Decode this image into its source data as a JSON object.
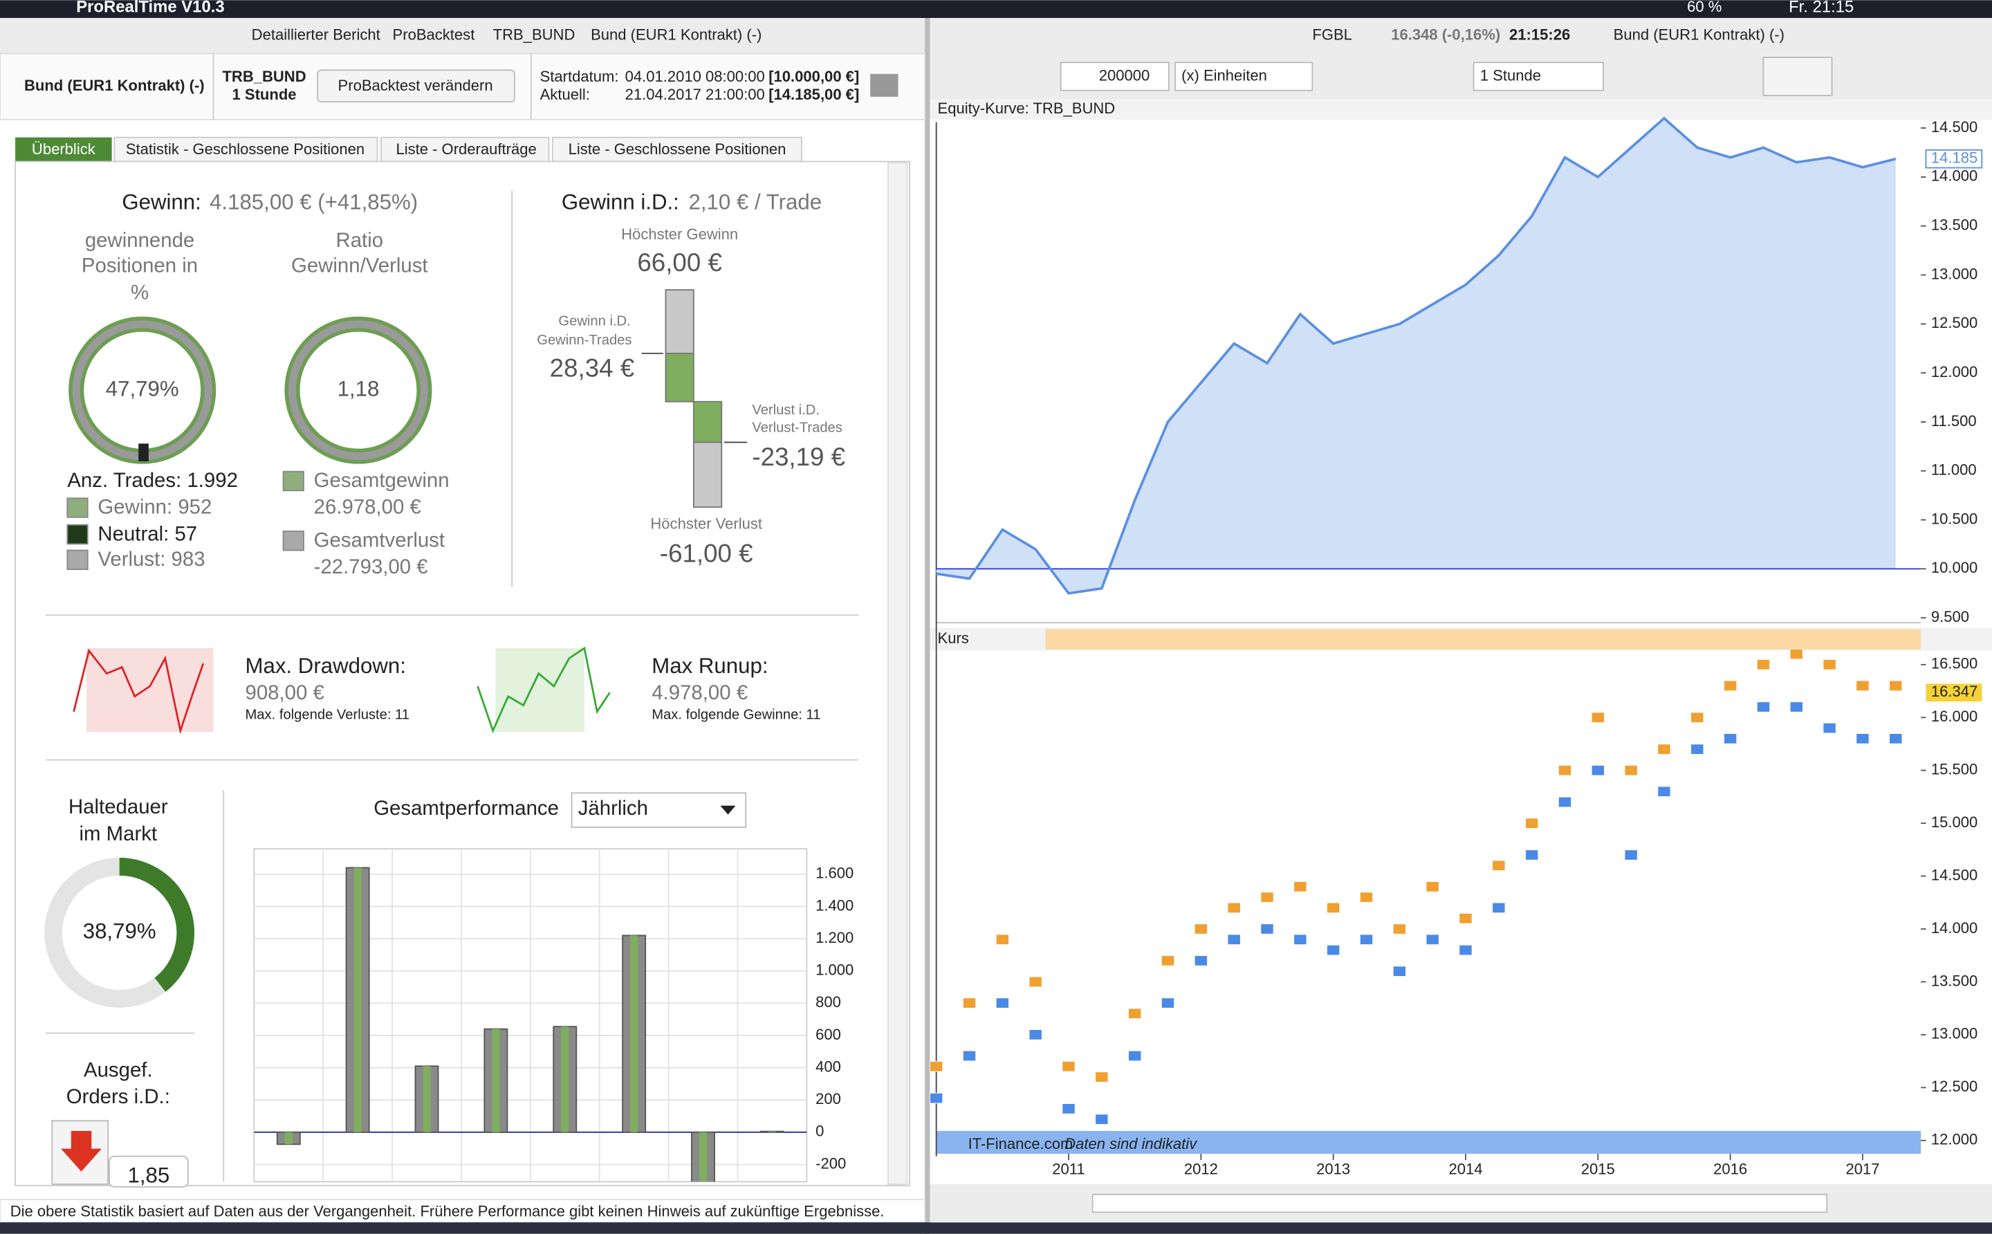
{
  "ui": {
    "menubar": {
      "app": "ProRealTime V10.3",
      "battery": "60 %",
      "clock": "Fr. 21:15"
    },
    "left_title": {
      "items": [
        "Detaillierter Bericht",
        "ProBacktest",
        "TRB_BUND",
        "Bund (EUR1 Kontrakt) (-)"
      ]
    },
    "header": {
      "instrument": "Bund (EUR1 Kontrakt) (-)",
      "system": "TRB_BUND",
      "interval": "1 Stunde",
      "button": "ProBacktest verändern",
      "start_label": "Startdatum:",
      "start": "04.01.2010 08:00:00",
      "start_capital": "[10.000,00 €]",
      "current_label": "Aktuell:",
      "current": "21.04.2017 21:00:00",
      "current_capital": "[14.185,00 €]"
    },
    "tabs": [
      "Überblick",
      "Statistik - Geschlossene Positionen",
      "Liste - Orderaufträge",
      "Liste - Geschlossene Positionen"
    ],
    "summary": {
      "gain_label": "Gewinn:",
      "gain": "4.185,00 € (+41,85%)",
      "win_title": [
        "gewinnende",
        "Positionen in",
        "%"
      ],
      "win_value": "47,79%",
      "ratio_title": [
        "Ratio",
        "Gewinn/Verlust"
      ],
      "ratio_value": "1,18",
      "trades": "Anz. Trades: 1.992",
      "wins": "Gewinn: 952",
      "neutral": "Neutral: 57",
      "losses": "Verlust: 983",
      "total_gain_label": "Gesamtgewinn",
      "total_gain": "26.978,00 €",
      "total_loss_label": "Gesamtverlust",
      "total_loss": "-22.793,00 €"
    },
    "avg": {
      "title": "Gewinn i.D.:",
      "value": "2,10 € / Trade",
      "best_label": "Höchster Gewinn",
      "best": "66,00 €",
      "avg_win_label": [
        "Gewinn i.D.",
        "Gewinn-Trades"
      ],
      "avg_win": "28,34 €",
      "avg_loss_label": [
        "Verlust i.D.",
        "Verlust-Trades"
      ],
      "avg_loss": "-23,19 €",
      "worst_label": "Höchster Verlust",
      "worst": "-61,00 €"
    },
    "drawdown": {
      "label": "Max. Drawdown:",
      "value": "908,00 €",
      "sub": "Max. folgende Verluste: 11"
    },
    "runup": {
      "label": "Max Runup:",
      "value": "4.978,00 €",
      "sub": "Max. folgende Gewinne: 11"
    },
    "hold": {
      "title": [
        "Haltedauer",
        "im Markt"
      ],
      "value": "38,79%"
    },
    "orders": {
      "title": [
        "Ausgef.",
        "Orders i.D.:"
      ],
      "value": "1,85"
    },
    "perf": {
      "label": "Gesamtperformance",
      "dropdown": "Jährlich"
    },
    "footer": "Die obere Statistik basiert auf Daten aus der Vergangenheit. Frühere Performance gibt keinen Hinweis auf zukünftige Ergebnisse.",
    "right": {
      "symbol": "FGBL",
      "quote": "16.348 (-0,16%)",
      "time": "21:15:26",
      "name": "Bund (EUR1 Kontrakt) (-)",
      "qty": "200000",
      "unit": "(x) Einheiten",
      "interval": "1 Stunde",
      "equity_title": "Equity-Kurve: TRB_BUND",
      "price_title": "Kurs",
      "source": "IT-Finance.com",
      "note": "Daten sind indikativ"
    }
  },
  "chart_data": [
    {
      "type": "bar",
      "categories": [
        null,
        null,
        null,
        null,
        null,
        null,
        null,
        null
      ],
      "values": [
        -75,
        1640,
        410,
        640,
        655,
        1220,
        -400,
        5
      ],
      "color": "#8a8a8a",
      "ylim": [
        -307,
        1757
      ],
      "yticks": [
        {
          "value": 1600,
          "label": "1.600"
        },
        {
          "value": 1400,
          "label": "1.400"
        },
        {
          "value": 1200,
          "label": "1.200"
        },
        {
          "value": 1000,
          "label": "1.000"
        },
        800,
        600,
        400,
        200,
        0,
        -200
      ],
      "grid": true
    },
    {
      "type": "line",
      "x": [
        2010,
        2010.25,
        2010.5,
        2010.75,
        2011,
        2011.25,
        2011.5,
        2011.75,
        2012,
        2012.25,
        2012.5,
        2012.75,
        2013,
        2013.25,
        2013.5,
        2013.75,
        2014,
        2014.25,
        2014.5,
        2014.75,
        2015,
        2015.25,
        2015.5,
        2015.75,
        2016,
        2016.25,
        2016.5,
        2016.75,
        2017,
        2017.25
      ],
      "values": [
        9950,
        9900,
        10400,
        10200,
        9750,
        9800,
        10700,
        11500,
        11900,
        12300,
        12100,
        12600,
        12300,
        12400,
        12500,
        12700,
        12900,
        13200,
        13600,
        14200,
        14000,
        14300,
        14600,
        14300,
        14200,
        14300,
        14150,
        14200,
        14100,
        14185
      ],
      "color": "#5b8fe0",
      "last_label": "14.185",
      "reference_line": 10000,
      "xlim": [
        2010,
        2017.44
      ],
      "ylim": [
        9450,
        14560
      ],
      "yticks": [
        {
          "value": 14500,
          "label": "14.500"
        },
        {
          "value": 14000,
          "label": "14.000"
        },
        {
          "value": 13500,
          "label": "13.500"
        },
        {
          "value": 13000,
          "label": "13.000"
        },
        {
          "value": 12500,
          "label": "12.500"
        },
        {
          "value": 12000,
          "label": "12.000"
        },
        {
          "value": 11500,
          "label": "11.500"
        },
        {
          "value": 11000,
          "label": "11.000"
        },
        {
          "value": 10500,
          "label": "10.500"
        },
        {
          "value": 10000,
          "label": "10.000"
        },
        {
          "value": 9500,
          "label": "9.500"
        }
      ]
    },
    {
      "type": "scatter",
      "x": [
        2010,
        2010.25,
        2010.5,
        2010.75,
        2011,
        2011.25,
        2011.5,
        2011.75,
        2012,
        2012.25,
        2012.5,
        2012.75,
        2013,
        2013.25,
        2013.5,
        2013.75,
        2014,
        2014.25,
        2014.5,
        2014.75,
        2015,
        2015.25,
        2015.5,
        2015.75,
        2016,
        2016.25,
        2016.5,
        2016.75,
        2017,
        2017.25
      ],
      "series": [
        {
          "color": "#f0a030",
          "values": [
            12700,
            13300,
            13900,
            13500,
            12700,
            12600,
            13200,
            13700,
            14000,
            14200,
            14300,
            14400,
            14200,
            14300,
            14000,
            14400,
            14100,
            14600,
            15000,
            15500,
            16000,
            15500,
            15700,
            16000,
            16300,
            16500,
            16600,
            16500,
            16300,
            16300
          ]
        },
        {
          "color": "#4a8ae6",
          "values": [
            12400,
            12800,
            13300,
            13000,
            12300,
            12200,
            12800,
            13300,
            13700,
            13900,
            14000,
            13900,
            13800,
            13900,
            13600,
            13900,
            13800,
            14200,
            14700,
            15200,
            15500,
            14700,
            15300,
            15700,
            15800,
            16100,
            16100,
            15900,
            15800,
            15800
          ]
        }
      ],
      "last_label": "16.347",
      "xlim": [
        2010,
        2017.44
      ],
      "ylim": [
        11850,
        16620
      ],
      "xticks": [
        2011,
        2012,
        2013,
        2014,
        2015,
        2016,
        2017
      ],
      "yticks": [
        {
          "value": 16500,
          "label": "16.500"
        },
        {
          "value": 16000,
          "label": "16.000"
        },
        {
          "value": 15500,
          "label": "15.500"
        },
        {
          "value": 15000,
          "label": "15.000"
        },
        {
          "value": 14500,
          "label": "14.500"
        },
        {
          "value": 14000,
          "label": "14.000"
        },
        {
          "value": 13500,
          "label": "13.500"
        },
        {
          "value": 13000,
          "label": "13.000"
        },
        {
          "value": 12500,
          "label": "12.500"
        },
        {
          "value": 12000,
          "label": "12.000"
        }
      ]
    }
  ]
}
